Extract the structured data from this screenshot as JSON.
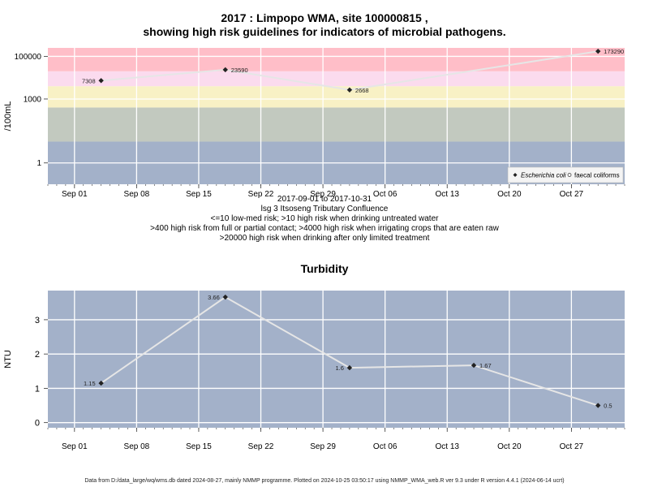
{
  "chart_data": [
    {
      "type": "line",
      "title": "2017 : Limpopo WMA, site 100000815 ,",
      "subtitle": "showing high risk guidelines for indicators of microbial pathogens.",
      "ylabel": "/100mL",
      "yscale": "log",
      "ylim": [
        0.1,
        250000
      ],
      "xlim": [
        "2017-08-29",
        "2017-11-02"
      ],
      "x_ticks": [
        {
          "date": "2017-09-01",
          "label": "Sep 01"
        },
        {
          "date": "2017-09-08",
          "label": "Sep 08"
        },
        {
          "date": "2017-09-15",
          "label": "Sep 15"
        },
        {
          "date": "2017-09-22",
          "label": "Sep 22"
        },
        {
          "date": "2017-09-29",
          "label": "Sep 29"
        },
        {
          "date": "2017-10-06",
          "label": "Oct 06"
        },
        {
          "date": "2017-10-13",
          "label": "Oct 13"
        },
        {
          "date": "2017-10-20",
          "label": "Oct 20"
        },
        {
          "date": "2017-10-27",
          "label": "Oct 27"
        }
      ],
      "y_ticks": [
        {
          "value": 1,
          "label": "1"
        },
        {
          "value": 1000,
          "label": "1000"
        },
        {
          "value": 100000,
          "label": "100000"
        }
      ],
      "bands": [
        {
          "from": 0.1,
          "to": 10,
          "color": "#a3b1c9"
        },
        {
          "from": 10,
          "to": 400,
          "color": "#c2c9bf"
        },
        {
          "from": 400,
          "to": 4000,
          "color": "#f8f1c5"
        },
        {
          "from": 4000,
          "to": 20000,
          "color": "#fbdbee"
        },
        {
          "from": 20000,
          "to": 250000,
          "color": "#ffbec8"
        }
      ],
      "series": [
        {
          "name": "Escherichia coli",
          "points": [
            {
              "date": "2017-09-04",
              "value": 7308,
              "label": "7308",
              "label_side": "left"
            },
            {
              "date": "2017-09-18",
              "value": 23590,
              "label": "23590",
              "label_side": "right"
            },
            {
              "date": "2017-10-02",
              "value": 2668,
              "label": "2668",
              "label_side": "right"
            },
            {
              "date": "2017-10-30",
              "value": 173290,
              "label": "173290",
              "label_side": "right"
            }
          ]
        }
      ],
      "legend": {
        "position": "bottom-right",
        "items": [
          "Escherichia coli",
          "faecal coliforms"
        ]
      },
      "notes": [
        "2017-09-01 to 2017-10-31",
        "lsg 3 Itsoseng Tributary Confluence",
        "<=10 low-med risk; >10 high risk when drinking untreated water",
        ">400 high risk from full or partial contact; >4000 high risk when irrigating crops that are eaten raw",
        ">20000 high risk when drinking after only limited treatment"
      ]
    },
    {
      "type": "line",
      "title": "Turbidity",
      "ylabel": "NTU",
      "ylim": [
        -0.15,
        3.85
      ],
      "xlim": [
        "2017-08-29",
        "2017-11-02"
      ],
      "y_ticks": [
        {
          "value": 0,
          "label": "0"
        },
        {
          "value": 1,
          "label": "1"
        },
        {
          "value": 2,
          "label": "2"
        },
        {
          "value": 3,
          "label": "3"
        }
      ],
      "series": [
        {
          "name": "",
          "points": [
            {
              "date": "2017-09-04",
              "value": 1.15,
              "label": "1.15",
              "label_side": "left"
            },
            {
              "date": "2017-09-18",
              "value": 3.66,
              "label": "3.66",
              "label_side": "left"
            },
            {
              "date": "2017-10-02",
              "value": 1.6,
              "label": "1.6",
              "label_side": "left"
            },
            {
              "date": "2017-10-16",
              "value": 1.67,
              "label": "1.67",
              "label_side": "right"
            },
            {
              "date": "2017-10-30",
              "value": 0.5,
              "label": "0.5",
              "label_side": "right"
            }
          ]
        }
      ]
    }
  ],
  "footer": "Data from D:/data_large/wq/wms.db dated 2024-08-27, mainly NMMP programme. Plotted on 2024-10-25 03:50:17 using NMMP_WMA_web.R ver 9.3 under R version 4.4.1 (2024-06-14 ucrt)"
}
